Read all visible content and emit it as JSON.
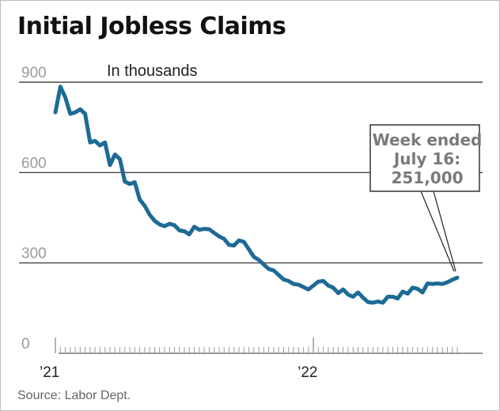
{
  "chart_data": {
    "type": "line",
    "title": "Initial Jobless Claims",
    "unit_label": "In thousands",
    "source": "Source: Labor Dept.",
    "y_ticks": [
      0,
      300,
      600,
      900
    ],
    "y_tick_labels": [
      "0",
      "300",
      "600",
      "900"
    ],
    "ylim": [
      0,
      900
    ],
    "x_labels": [
      {
        "label": "’21",
        "x": 0
      },
      {
        "label": "’22",
        "x": 52
      }
    ],
    "xlim": [
      0,
      82
    ],
    "grid": "horizontal",
    "line_color": "#1e6a96",
    "annotation": {
      "lines": [
        "Week ended",
        "July 16:",
        "251,000"
      ],
      "x": 81,
      "y": 251
    },
    "series": [
      {
        "values": [
          [
            0,
            800
          ],
          [
            1,
            885
          ],
          [
            2,
            850
          ],
          [
            3,
            795
          ],
          [
            4,
            800
          ],
          [
            5,
            810
          ],
          [
            6,
            795
          ],
          [
            7,
            700
          ],
          [
            8,
            705
          ],
          [
            9,
            690
          ],
          [
            10,
            700
          ],
          [
            11,
            625
          ],
          [
            12,
            660
          ],
          [
            13,
            645
          ],
          [
            14,
            570
          ],
          [
            15,
            562
          ],
          [
            16,
            568
          ],
          [
            17,
            510
          ],
          [
            18,
            490
          ],
          [
            19,
            460
          ],
          [
            20,
            440
          ],
          [
            21,
            428
          ],
          [
            22,
            422
          ],
          [
            23,
            430
          ],
          [
            24,
            425
          ],
          [
            25,
            408
          ],
          [
            26,
            405
          ],
          [
            27,
            395
          ],
          [
            28,
            420
          ],
          [
            29,
            410
          ],
          [
            30,
            413
          ],
          [
            31,
            412
          ],
          [
            32,
            400
          ],
          [
            33,
            388
          ],
          [
            34,
            380
          ],
          [
            35,
            360
          ],
          [
            36,
            358
          ],
          [
            37,
            375
          ],
          [
            38,
            370
          ],
          [
            39,
            345
          ],
          [
            40,
            320
          ],
          [
            41,
            310
          ],
          [
            42,
            295
          ],
          [
            43,
            280
          ],
          [
            44,
            275
          ],
          [
            45,
            260
          ],
          [
            46,
            245
          ],
          [
            47,
            240
          ],
          [
            48,
            230
          ],
          [
            49,
            228
          ],
          [
            50,
            220
          ],
          [
            51,
            212
          ],
          [
            52,
            225
          ],
          [
            53,
            238
          ],
          [
            54,
            240
          ],
          [
            55,
            225
          ],
          [
            56,
            218
          ],
          [
            57,
            200
          ],
          [
            58,
            212
          ],
          [
            59,
            195
          ],
          [
            60,
            188
          ],
          [
            61,
            202
          ],
          [
            62,
            185
          ],
          [
            63,
            170
          ],
          [
            64,
            168
          ],
          [
            65,
            172
          ],
          [
            66,
            168
          ],
          [
            67,
            188
          ],
          [
            68,
            188
          ],
          [
            69,
            182
          ],
          [
            70,
            205
          ],
          [
            71,
            198
          ],
          [
            72,
            218
          ],
          [
            73,
            214
          ],
          [
            74,
            202
          ],
          [
            75,
            232
          ],
          [
            76,
            230
          ],
          [
            77,
            232
          ],
          [
            78,
            230
          ],
          [
            79,
            236
          ],
          [
            80,
            244
          ],
          [
            81,
            251
          ]
        ]
      }
    ]
  }
}
